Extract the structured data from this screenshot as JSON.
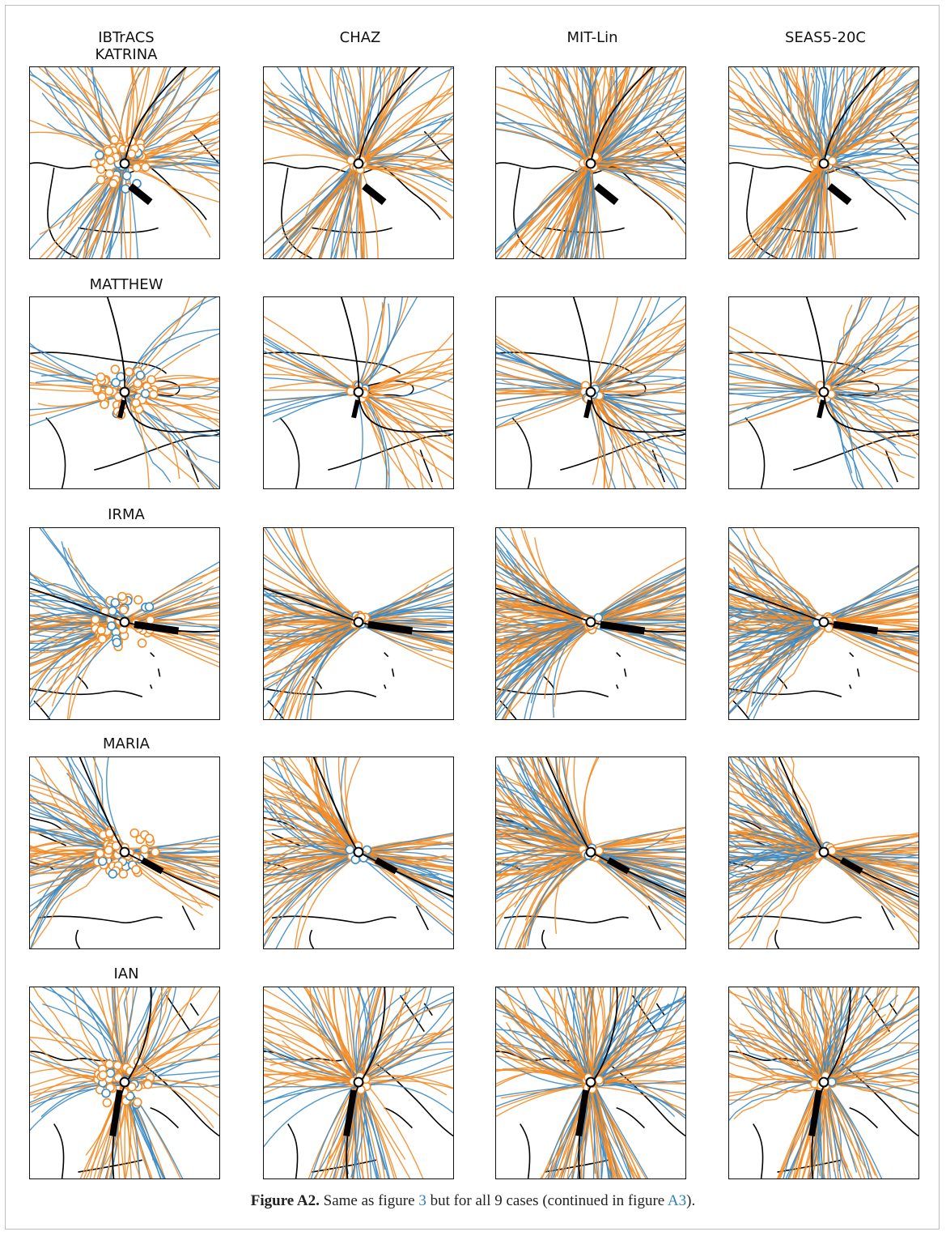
{
  "column_titles": [
    "IBTrACS",
    "CHAZ",
    "MIT-Lin",
    "SEAS5-20C"
  ],
  "row_titles": [
    "KATRINA",
    "MATTHEW",
    "IRMA",
    "MARIA",
    "IAN"
  ],
  "legend_colors": {
    "track_a": "#f28c28",
    "track_b": "#3b8ac4",
    "observed": "#000000"
  },
  "caption": {
    "label": "Figure A2.",
    "text_1": " Same as figure ",
    "ref_1": "3",
    "text_2": " but for all 9 cases (continued in figure ",
    "ref_2": "A3",
    "text_3": ")."
  }
}
